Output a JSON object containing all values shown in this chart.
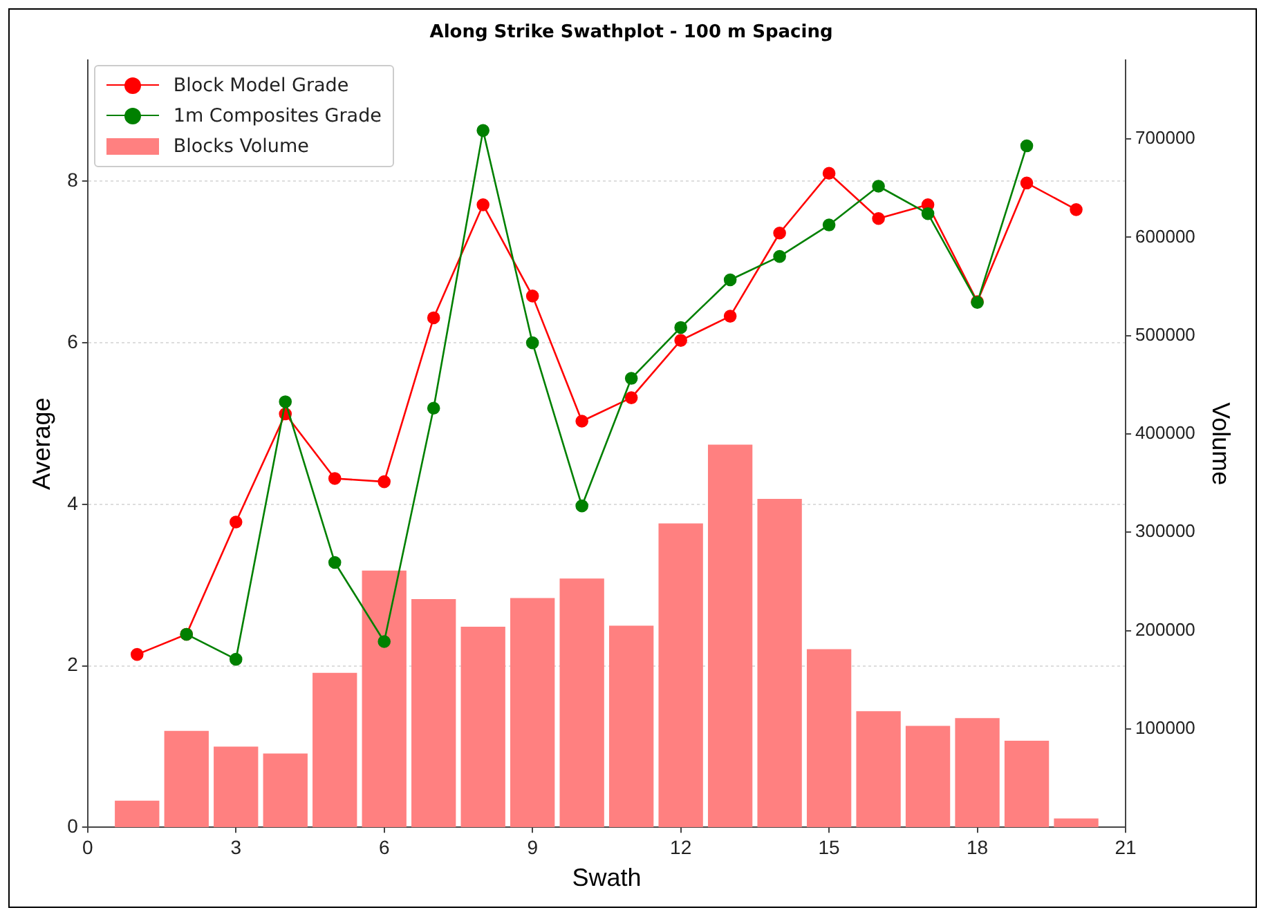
{
  "chart_data": {
    "type": "line",
    "title": "Along Strike Swathplot - 100 m Spacing",
    "xlabel": "Swath",
    "ylabel": "Average",
    "y2label": "Volume",
    "x": [
      1,
      2,
      3,
      4,
      5,
      6,
      7,
      8,
      9,
      10,
      11,
      12,
      13,
      14,
      15,
      16,
      17,
      18,
      19,
      20
    ],
    "xlim": [
      0,
      21
    ],
    "xticks": [
      0,
      3,
      6,
      9,
      12,
      15,
      18,
      21
    ],
    "ylim": [
      0,
      9.5
    ],
    "yticks": [
      0,
      2,
      4,
      6,
      8
    ],
    "y2lim": [
      0,
      780000
    ],
    "y2ticks": [
      100000,
      200000,
      300000,
      400000,
      500000,
      600000,
      700000
    ],
    "grid": "y",
    "legend": "top left",
    "marker": "circle",
    "series": [
      {
        "name": "Block Model Grade",
        "color": "#ff0000",
        "values": [
          2.14,
          2.39,
          3.78,
          5.12,
          4.32,
          4.28,
          6.31,
          7.71,
          6.58,
          5.03,
          5.32,
          6.03,
          6.33,
          7.36,
          8.1,
          7.54,
          7.71,
          6.51,
          7.98,
          7.65
        ]
      },
      {
        "name": "1m Composites Grade",
        "color": "#008000",
        "values": [
          null,
          2.39,
          2.08,
          5.27,
          3.28,
          2.3,
          5.19,
          8.63,
          6.0,
          3.98,
          5.56,
          6.19,
          6.78,
          7.07,
          7.46,
          7.94,
          7.6,
          6.5,
          8.44,
          null
        ]
      },
      {
        "name": "Blocks Volume",
        "type": "bar",
        "axis": "y2",
        "color": "#ff8080",
        "values": [
          27000,
          98000,
          82000,
          75000,
          157000,
          261000,
          232000,
          204000,
          233000,
          253000,
          205000,
          309000,
          389000,
          334000,
          181000,
          118000,
          103000,
          111000,
          88000,
          9000
        ]
      }
    ]
  }
}
